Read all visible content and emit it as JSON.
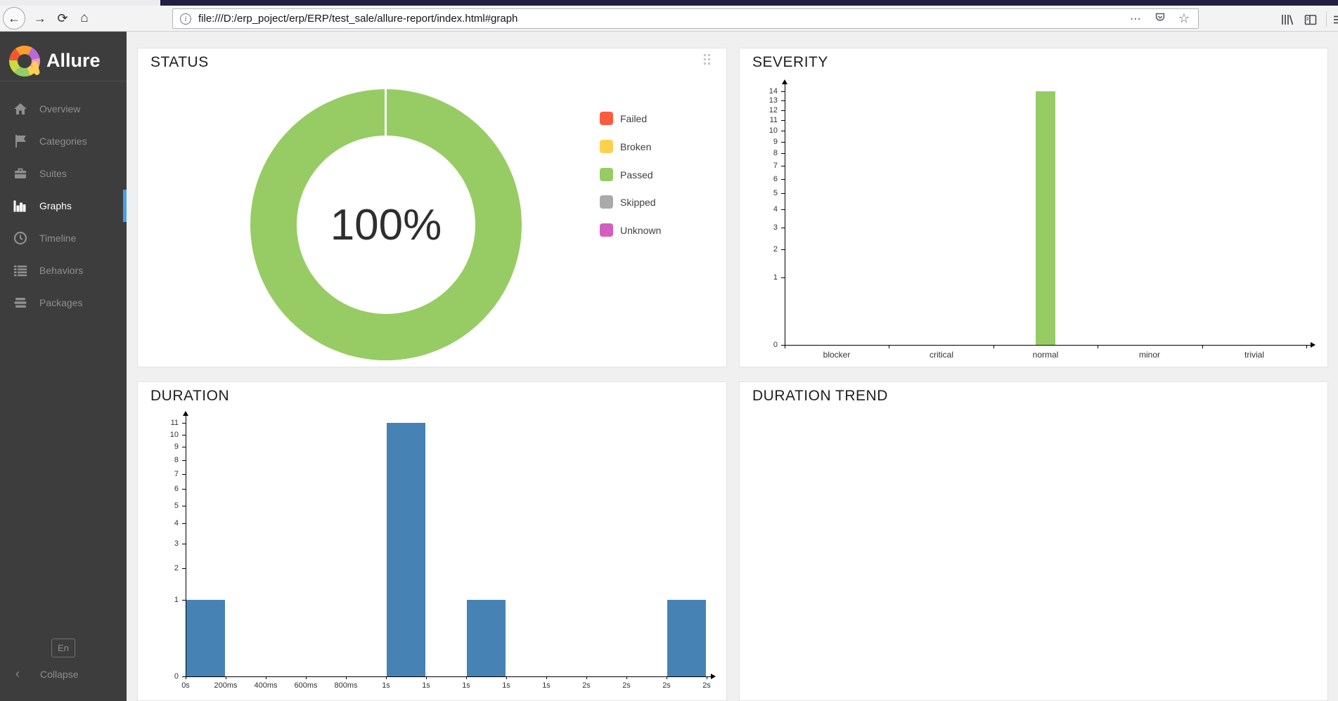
{
  "browser": {
    "url": "file:///D:/erp_poject/erp/ERP/test_sale/allure-report/index.html#graph"
  },
  "sidebar": {
    "brand": "Allure",
    "items": [
      {
        "label": "Overview"
      },
      {
        "label": "Categories"
      },
      {
        "label": "Suites"
      },
      {
        "label": "Graphs"
      },
      {
        "label": "Timeline"
      },
      {
        "label": "Behaviors"
      },
      {
        "label": "Packages"
      }
    ],
    "active_item": "Graphs",
    "language_button": "En",
    "collapse_label": "Collapse"
  },
  "colors": {
    "failed": "#fd5a3e",
    "broken": "#ffd050",
    "passed": "#97cc64",
    "skipped": "#aaaaaa",
    "unknown": "#d35ebe",
    "duration_bar": "#4682b4",
    "active_indicator": "#4a9fe8"
  },
  "panels": {
    "status": {
      "title": "STATUS",
      "center_label": "100%",
      "legend": [
        {
          "label": "Failed",
          "color": "#fd5a3e"
        },
        {
          "label": "Broken",
          "color": "#ffd050"
        },
        {
          "label": "Passed",
          "color": "#97cc64"
        },
        {
          "label": "Skipped",
          "color": "#aaaaaa"
        },
        {
          "label": "Unknown",
          "color": "#d35ebe"
        }
      ]
    },
    "severity": {
      "title": "SEVERITY"
    },
    "duration": {
      "title": "DURATION"
    },
    "duration_trend": {
      "title": "DURATION TREND"
    }
  },
  "chart_data": [
    {
      "id": "status-donut",
      "type": "pie",
      "title": "STATUS",
      "center_label": "100%",
      "segments": [
        {
          "label": "Passed",
          "value": 100,
          "color": "#97cc64"
        }
      ],
      "legend": [
        "Failed",
        "Broken",
        "Passed",
        "Skipped",
        "Unknown"
      ]
    },
    {
      "id": "severity",
      "type": "bar",
      "title": "SEVERITY",
      "categories": [
        "blocker",
        "critical",
        "normal",
        "minor",
        "trivial"
      ],
      "values": [
        0,
        0,
        14,
        0,
        0
      ],
      "bar_color": "#97cc64",
      "ylim": [
        0,
        14
      ],
      "yticks": [
        0,
        1,
        2,
        3,
        4,
        5,
        6,
        7,
        8,
        9,
        10,
        11,
        12,
        13,
        14
      ],
      "y_scale": "sqrt",
      "grid": false,
      "legend_position": "none"
    },
    {
      "id": "duration",
      "type": "histogram",
      "title": "DURATION",
      "x_tick_labels": [
        "0s",
        "200ms",
        "400ms",
        "600ms",
        "800ms",
        "1s",
        "1s",
        "1s",
        "1s",
        "1s",
        "2s",
        "2s",
        "2s",
        "2s"
      ],
      "bars": [
        {
          "interval_index": 0,
          "from_label": "0s",
          "to_label": "200ms",
          "count": 1
        },
        {
          "interval_index": 5,
          "from_label": "1s",
          "to_label": "1s",
          "count": 11
        },
        {
          "interval_index": 7,
          "from_label": "1s",
          "to_label": "1s",
          "count": 1
        },
        {
          "interval_index": 12,
          "from_label": "2s",
          "to_label": "2s",
          "count": 1
        }
      ],
      "bar_color": "#4682b4",
      "ylim": [
        0,
        11
      ],
      "yticks": [
        0,
        1,
        2,
        3,
        4,
        5,
        6,
        7,
        8,
        9,
        10,
        11
      ],
      "y_scale": "sqrt",
      "grid": false
    },
    {
      "id": "duration-trend",
      "type": "line",
      "title": "DURATION TREND",
      "series": []
    }
  ]
}
